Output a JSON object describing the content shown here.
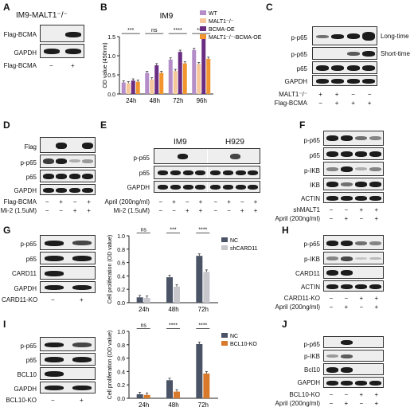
{
  "panels": {
    "A": {
      "letter": "A",
      "title": "IM9-MALT1⁻/⁻",
      "rows": [
        "Flag-BCMA",
        "GAPDH"
      ],
      "cond_label": "Flag-BCMA",
      "cond": [
        "−",
        "+"
      ]
    },
    "B": {
      "letter": "B"
    },
    "C": {
      "letter": "C",
      "rows": [
        "p-p65",
        "p-p65",
        "p65",
        "GAPDH"
      ],
      "right_labels": [
        "Long-time",
        "Short-time"
      ],
      "conds": [
        {
          "label": "MALT1⁻/⁻",
          "vals": [
            "+",
            "+",
            "−",
            "−"
          ]
        },
        {
          "label": "Flag-BCMA",
          "vals": [
            "−",
            "+",
            "+",
            "+"
          ]
        }
      ]
    },
    "D": {
      "letter": "D",
      "rows": [
        "Flag",
        "p-p65",
        "p65",
        "GAPDH"
      ],
      "conds": [
        {
          "label": "Flag-BCMA",
          "vals": [
            "−",
            "+",
            "−",
            "+"
          ]
        },
        {
          "label": "Mi-2 (1.5uM)",
          "vals": [
            "−",
            "−",
            "+",
            "+"
          ]
        }
      ]
    },
    "E": {
      "letter": "E",
      "groups": [
        "IM9",
        "H929"
      ],
      "rows": [
        "p-p65",
        "p65",
        "GAPDH"
      ],
      "conds": [
        {
          "label": "April (200ng/ml)",
          "vals": [
            "−",
            "+",
            "−",
            "+",
            "−",
            "+",
            "−",
            "+"
          ]
        },
        {
          "label": "Mi-2 (1.5uM)",
          "vals": [
            "−",
            "−",
            "+",
            "+",
            "−",
            "−",
            "+",
            "+"
          ]
        }
      ]
    },
    "F": {
      "letter": "F",
      "rows": [
        "p-p65",
        "p65",
        "p-IKB",
        "IKB",
        "ACTIN"
      ],
      "conds": [
        {
          "label": "shMALT1",
          "vals": [
            "−",
            "−",
            "+",
            "+"
          ]
        },
        {
          "label": "April (200ng/ml)",
          "vals": [
            "−",
            "+",
            "−",
            "+"
          ]
        }
      ]
    },
    "G": {
      "letter": "G",
      "rows": [
        "p-p65",
        "p65",
        "CARD11",
        "GAPDH"
      ],
      "cond_label": "CARD11-KO",
      "cond": [
        "−",
        "+"
      ]
    },
    "H": {
      "letter": "H",
      "rows": [
        "p-p65",
        "p-IKB",
        "CARD11",
        "ACTIN"
      ],
      "conds": [
        {
          "label": "CARD11-KO",
          "vals": [
            "−",
            "−",
            "+",
            "+"
          ]
        },
        {
          "label": "April (200ng/ml)",
          "vals": [
            "−",
            "+",
            "−",
            "+"
          ]
        }
      ]
    },
    "I": {
      "letter": "I",
      "rows": [
        "p-p65",
        "p65",
        "BCL10",
        "GAPDH"
      ],
      "cond_label": "BCL10-KO",
      "cond": [
        "−",
        "+"
      ]
    },
    "J": {
      "letter": "J",
      "rows": [
        "p-p65",
        "p-IKB",
        "Bcl10",
        "GAPDH"
      ],
      "conds": [
        {
          "label": "BCL10-KO",
          "vals": [
            "−",
            "−",
            "+",
            "+"
          ]
        },
        {
          "label": "April (200ng/ml)",
          "vals": [
            "−",
            "+",
            "−",
            "+"
          ]
        }
      ]
    }
  },
  "chart_data": [
    {
      "id": "B",
      "type": "bar",
      "title": "IM9",
      "categories": [
        "24h",
        "48h",
        "72h",
        "96h"
      ],
      "ylabel": "OD value (450nm)",
      "ylim": [
        0,
        1.5
      ],
      "yticks": [
        "0.0",
        "0.5",
        "1.0",
        "1.5"
      ],
      "legend_position": "top-right",
      "series": [
        {
          "name": "WT",
          "color": "#b48cc8",
          "values": [
            0.3,
            0.55,
            0.9,
            1.15
          ]
        },
        {
          "name": "MALT1⁻/⁻",
          "color": "#f6c79a",
          "values": [
            0.28,
            0.38,
            0.6,
            0.78
          ]
        },
        {
          "name": "BCMA-OE",
          "color": "#6a2d82",
          "values": [
            0.35,
            0.75,
            1.1,
            1.45
          ]
        },
        {
          "name": "MALT1⁻/⁻-BCMA-OE",
          "color": "#f2952f",
          "values": [
            0.32,
            0.55,
            0.8,
            0.92
          ]
        }
      ],
      "significance": [
        "***",
        "ns",
        "****",
        "****"
      ]
    },
    {
      "id": "G",
      "type": "bar",
      "categories": [
        "24h",
        "48h",
        "72h"
      ],
      "ylabel": "Cell proliferation (OD value)",
      "ylim": [
        0,
        1.0
      ],
      "yticks": [
        "0.0",
        "0.2",
        "0.4",
        "0.6",
        "0.8",
        "1.0"
      ],
      "legend_position": "top-left",
      "series": [
        {
          "name": "NC",
          "color": "#4a5466",
          "values": [
            0.08,
            0.38,
            0.7
          ]
        },
        {
          "name": "shCARD11",
          "color": "#c7c7cc",
          "values": [
            0.07,
            0.24,
            0.46
          ]
        }
      ],
      "significance": [
        "ns",
        "***",
        "****"
      ]
    },
    {
      "id": "I",
      "type": "bar",
      "categories": [
        "24h",
        "48h",
        "72h"
      ],
      "ylabel": "Cell proliferation (OD value)",
      "ylim": [
        0,
        1.0
      ],
      "yticks": [
        "0.0",
        "0.2",
        "0.4",
        "0.6",
        "0.8",
        "1.0"
      ],
      "legend_position": "top-left",
      "series": [
        {
          "name": "NC",
          "color": "#4a5466",
          "values": [
            0.06,
            0.27,
            0.81
          ]
        },
        {
          "name": "BCL10-KO",
          "color": "#d9792b",
          "values": [
            0.05,
            0.1,
            0.37
          ]
        }
      ],
      "significance": [
        "ns",
        "****",
        "****"
      ]
    }
  ]
}
